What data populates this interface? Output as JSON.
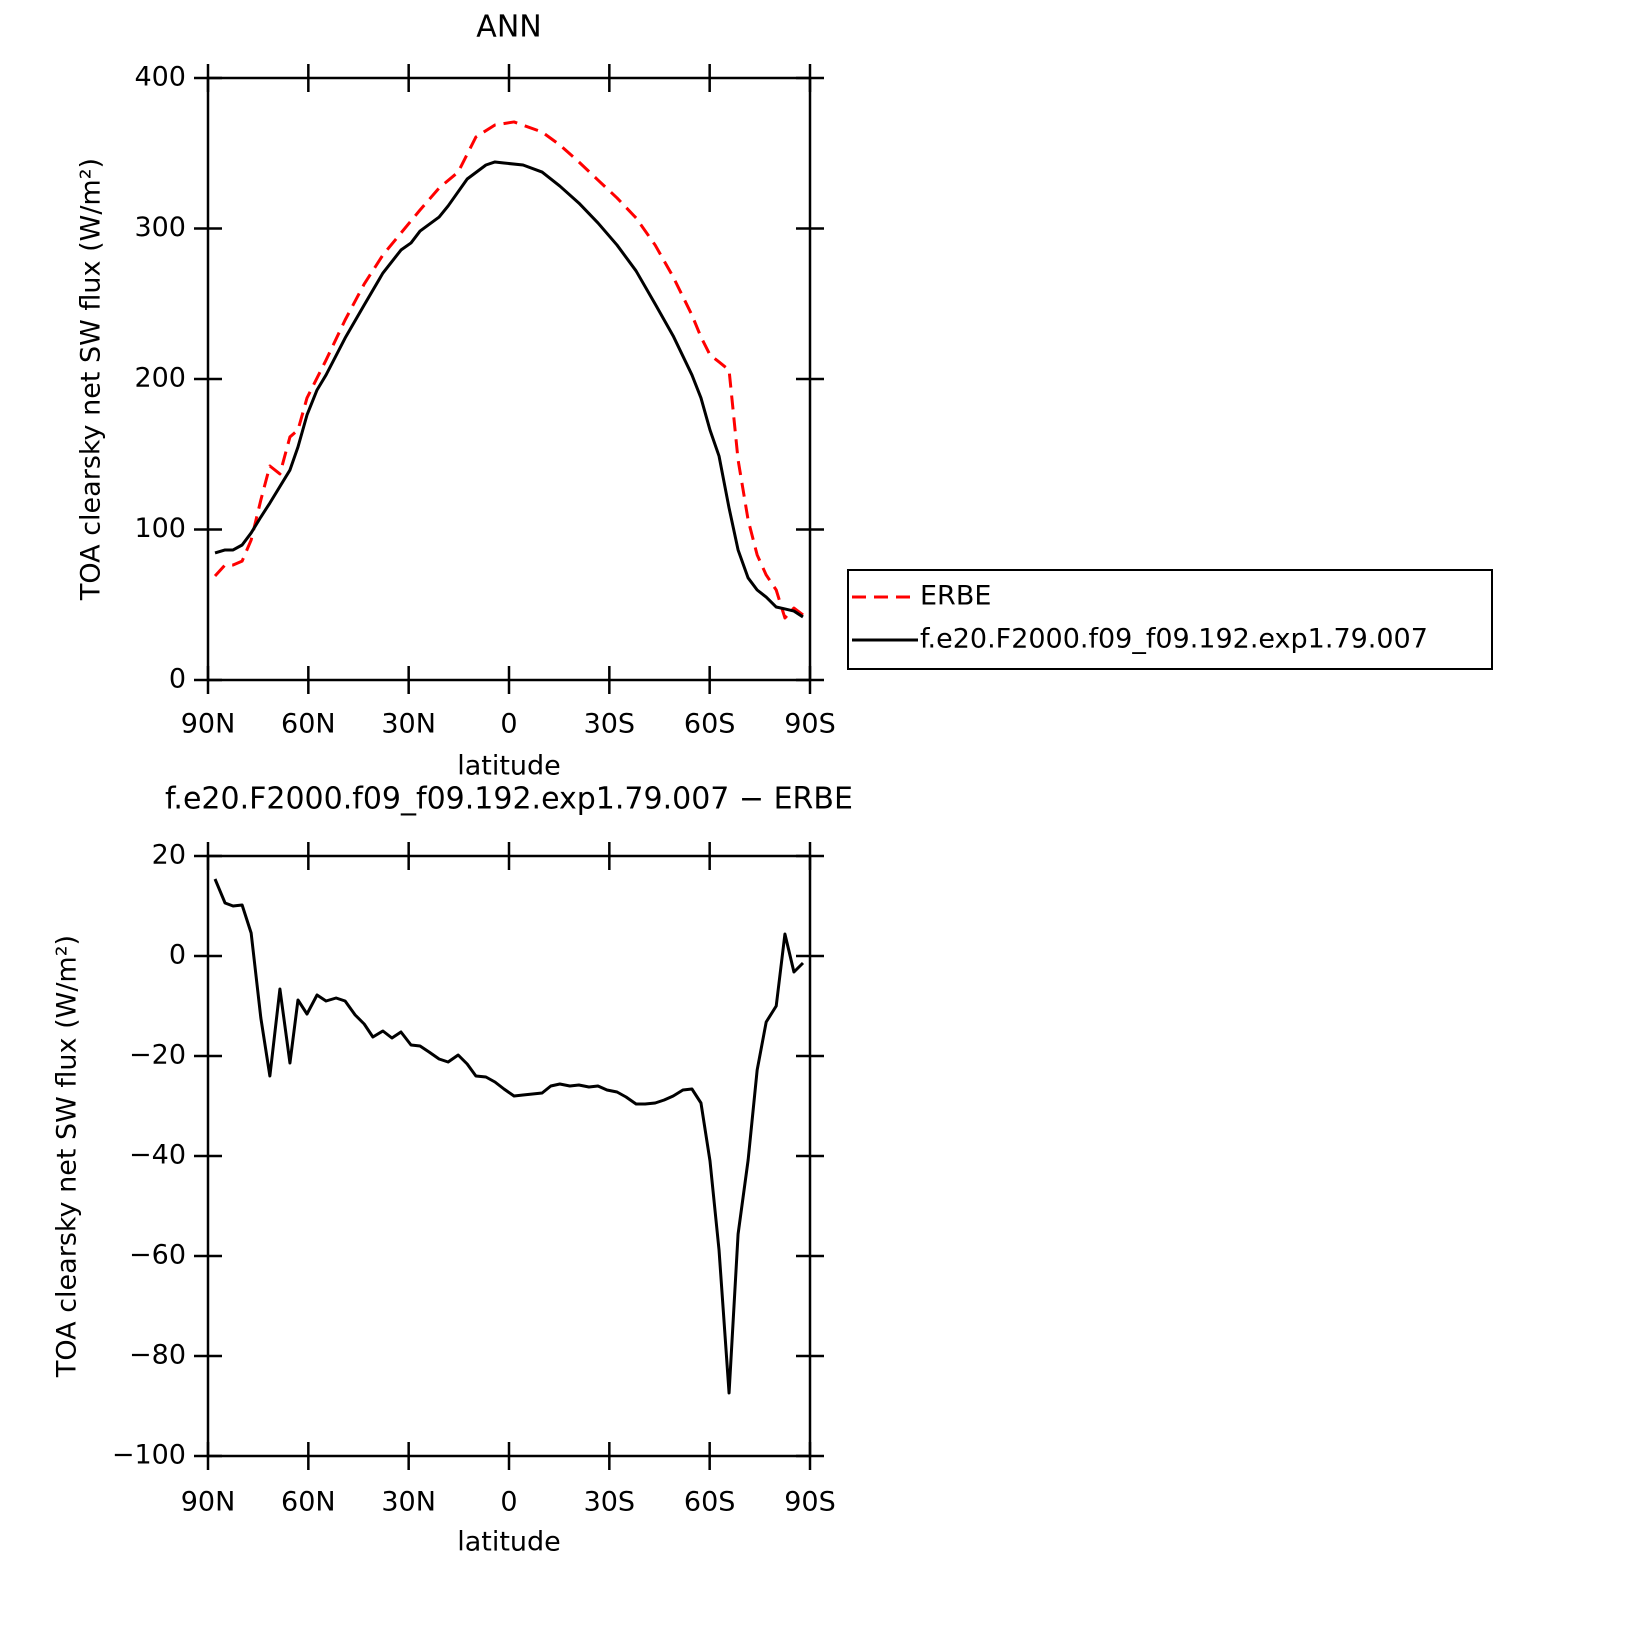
{
  "chart_data": [
    {
      "type": "line",
      "title": "ANN",
      "xlabel": "latitude",
      "ylabel": "TOA clearsky net SW flux (W/m²)",
      "xlim": [
        90,
        -90
      ],
      "ylim": [
        0,
        400
      ],
      "xticks": [
        {
          "value": 90,
          "label": "90N"
        },
        {
          "value": 60,
          "label": "60N"
        },
        {
          "value": 30,
          "label": "30N"
        },
        0,
        {
          "value": -30,
          "label": "30S"
        },
        {
          "value": -60,
          "label": "60S"
        },
        {
          "value": -90,
          "label": "90S"
        }
      ],
      "yticks": [
        0,
        100,
        200,
        300,
        400
      ],
      "legend": "right",
      "series": [
        {
          "name": "ERBE",
          "color": "#ff0000",
          "line_style": "dashed",
          "x": [
            87.9,
            84.9,
            82.5,
            79.8,
            77.1,
            74.2,
            71.5,
            68.5,
            65.5,
            63.1,
            60.4,
            54.7,
            49.0,
            43.3,
            37.7,
            32.3,
            26.6,
            20.9,
            15.2,
            9.9,
            4.2,
            -1.5,
            -9.9,
            -15.2,
            -20.9,
            -26.6,
            -32.3,
            -38.0,
            -43.7,
            -49.1,
            -54.7,
            -57.4,
            -60.1,
            -62.8,
            -65.8,
            -68.5,
            -71.5,
            -74.2,
            -76.9,
            -79.9,
            -82.5,
            -85.2,
            -87.9
          ],
          "values": [
            69.1,
            76.4,
            76.4,
            79,
            93,
            119.6,
            142.2,
            136.9,
            161.5,
            166.1,
            187.4,
            212.6,
            239.2,
            263.1,
            282.4,
            297,
            312.3,
            326.9,
            337.5,
            360.8,
            368.8,
            370.8,
            364.1,
            355.5,
            344.2,
            332.2,
            320.3,
            307,
            289,
            267.8,
            242.5,
            227.9,
            216,
            211.3,
            206,
            146.2,
            106.3,
            83.1,
            69.8,
            59.8,
            41.2,
            47.8,
            43.2
          ]
        },
        {
          "name": "f.e20.F2000.f09_f09.192.exp1.79.007",
          "color": "#000000",
          "line_style": "solid",
          "x": [
            87.9,
            84.9,
            82.5,
            79.8,
            77.1,
            74.2,
            71.5,
            65.5,
            63.1,
            60.4,
            57.4,
            54.7,
            49.0,
            43.3,
            37.7,
            32.3,
            29.3,
            26.6,
            20.9,
            18.2,
            12.5,
            6.9,
            4.2,
            1.5,
            -4.2,
            -9.9,
            -15.2,
            -20.9,
            -26.6,
            -32.3,
            -38.0,
            -43.7,
            -49.1,
            -54.7,
            -57.4,
            -60.1,
            -62.8,
            -65.8,
            -68.5,
            -71.5,
            -74.2,
            -76.9,
            -79.9,
            -82.5,
            -85.2,
            -87.9
          ],
          "values": [
            84.4,
            86.4,
            86.4,
            89.7,
            97.7,
            108.3,
            117.6,
            139.5,
            154.8,
            176.1,
            192.7,
            202.7,
            227.2,
            249.2,
            270.4,
            285.7,
            290.4,
            298.3,
            307.6,
            315,
            332.9,
            342.2,
            344.2,
            343.5,
            342.2,
            337.5,
            328.2,
            316.9,
            303.7,
            289,
            271.8,
            249.8,
            228.6,
            202.7,
            187.4,
            166.1,
            148.8,
            114.3,
            86.4,
            67.8,
            59.8,
            55.1,
            48.5,
            47.2,
            45.8,
            41.9
          ]
        }
      ]
    },
    {
      "type": "line",
      "title": "f.e20.F2000.f09_f09.192.exp1.79.007 − ERBE",
      "xlabel": "latitude",
      "ylabel": "TOA clearsky net SW flux (W/m²)",
      "xlim": [
        90,
        -90
      ],
      "ylim": [
        -100,
        20
      ],
      "xticks": [
        {
          "value": 90,
          "label": "90N"
        },
        {
          "value": 60,
          "label": "60N"
        },
        {
          "value": 30,
          "label": "30N"
        },
        0,
        {
          "value": -30,
          "label": "30S"
        },
        {
          "value": -60,
          "label": "60S"
        },
        {
          "value": -90,
          "label": "90S"
        }
      ],
      "yticks": [
        {
          "value": -100,
          "label": "−100"
        },
        {
          "value": -80,
          "label": "−80"
        },
        {
          "value": -60,
          "label": "−60"
        },
        {
          "value": -40,
          "label": "−40"
        },
        {
          "value": -20,
          "label": "−20"
        },
        0,
        20
      ],
      "series": [
        {
          "color": "#000000",
          "line_style": "solid",
          "x": [
            87.9,
            84.9,
            82.5,
            79.8,
            77.1,
            74.2,
            71.5,
            68.5,
            65.5,
            63.1,
            60.4,
            57.4,
            54.7,
            51.7,
            49.0,
            46.0,
            43.3,
            40.7,
            37.7,
            35.0,
            32.3,
            29.3,
            26.6,
            23.9,
            20.9,
            18.2,
            15.2,
            12.5,
            9.9,
            6.9,
            4.2,
            1.5,
            -1.5,
            -4.2,
            -9.9,
            -12.5,
            -15.2,
            -18.2,
            -20.9,
            -23.9,
            -26.6,
            -29.3,
            -32.3,
            -35.0,
            -38.0,
            -40.7,
            -43.7,
            -46.4,
            -49.1,
            -52.0,
            -54.7,
            -57.4,
            -60.1,
            -62.8,
            -65.8,
            -68.5,
            -71.5,
            -74.2,
            -76.9,
            -79.9,
            -82.5,
            -85.2,
            -87.9
          ],
          "values": [
            15.4,
            10.6,
            10,
            10.2,
            4.6,
            -12.4,
            -24,
            -6.6,
            -21.4,
            -8.8,
            -11.6,
            -7.8,
            -9,
            -8.4,
            -9,
            -11.8,
            -13.6,
            -16.2,
            -15,
            -16.4,
            -15.2,
            -17.8,
            -18,
            -19.2,
            -20.6,
            -21.2,
            -19.8,
            -21.6,
            -24,
            -24.2,
            -25.2,
            -26.6,
            -28,
            -27.8,
            -27.4,
            -26,
            -25.6,
            -26,
            -25.8,
            -26.2,
            -26,
            -26.8,
            -27.2,
            -28.2,
            -29.6,
            -29.6,
            -29.4,
            -28.8,
            -28,
            -26.8,
            -26.6,
            -29.4,
            -41,
            -58.8,
            -87.4,
            -55.6,
            -40.8,
            -22.8,
            -13.2,
            -10,
            4.4,
            -3.2,
            -1.4
          ]
        }
      ]
    }
  ]
}
